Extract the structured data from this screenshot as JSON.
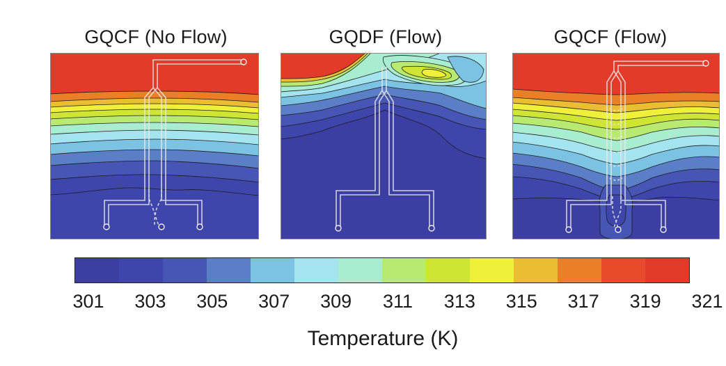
{
  "panels": [
    {
      "title": "GQCF (No Flow)"
    },
    {
      "title": "GQDF (Flow)"
    },
    {
      "title": "GQCF (Flow)"
    }
  ],
  "colorbar": {
    "ticks": [
      "301",
      "303",
      "305",
      "307",
      "309",
      "311",
      "313",
      "315",
      "317",
      "319",
      "321"
    ],
    "label": "Temperature  (K)",
    "colors": [
      "#3c3ea2",
      "#3f46ab",
      "#4755b4",
      "#5b7fc6",
      "#7cc2e3",
      "#a4e4ee",
      "#a8edd0",
      "#b8ea72",
      "#cfe534",
      "#eef03a",
      "#ebbd33",
      "#ea7f27",
      "#e84a2c",
      "#e33a2a"
    ]
  }
}
